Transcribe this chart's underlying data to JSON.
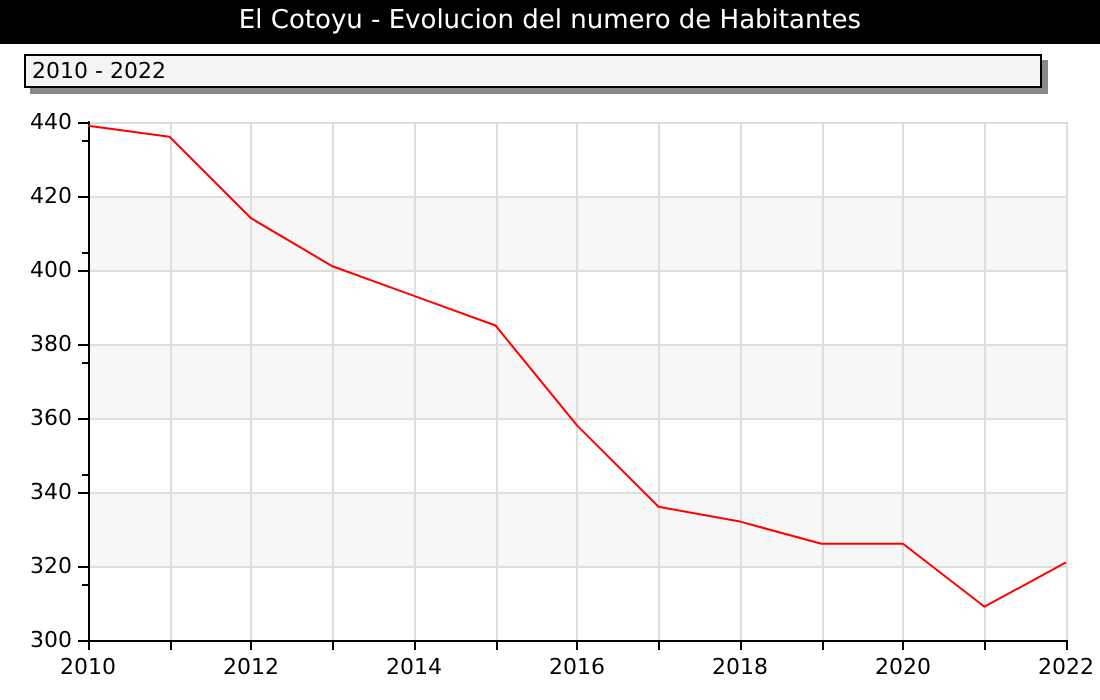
{
  "chart_data": {
    "type": "line",
    "title": "El Cotoyu - Evolucion del numero de Habitantes",
    "subtitle": "2010 - 2022",
    "x": [
      2010,
      2011,
      2012,
      2013,
      2014,
      2015,
      2016,
      2017,
      2018,
      2019,
      2020,
      2021,
      2022
    ],
    "series": [
      {
        "color": "#ff0000",
        "values": [
          439,
          436,
          414,
          401,
          393,
          385,
          358,
          336,
          332,
          326,
          326,
          309,
          321
        ]
      }
    ],
    "xlim": [
      2010,
      2022
    ],
    "xticks": [
      2010,
      {
        "value": 2011,
        "label": null
      },
      2012,
      {
        "value": 2013,
        "label": null
      },
      2014,
      {
        "value": 2015,
        "label": null
      },
      2016,
      {
        "value": 2017,
        "label": null
      },
      2018,
      {
        "value": 2019,
        "label": null
      },
      2020,
      {
        "value": 2021,
        "label": null
      },
      2022
    ],
    "ylim": [
      300,
      440
    ],
    "yticks": [
      300,
      320,
      340,
      360,
      380,
      400,
      420,
      440
    ],
    "grid": true,
    "marker": "none",
    "line_style": "solid"
  }
}
